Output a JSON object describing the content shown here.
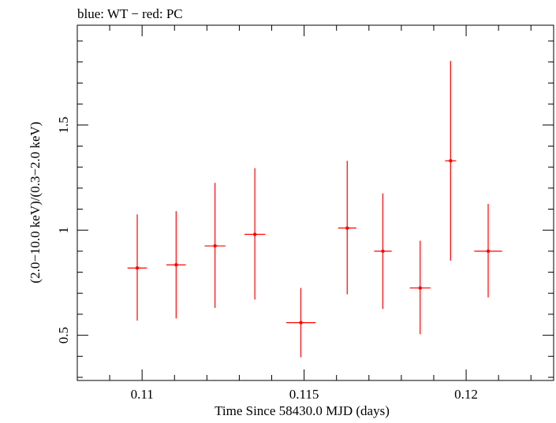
{
  "chart_data": {
    "type": "scatter",
    "title": "blue: WT − red: PC",
    "xlabel": "Time Since 58430.0 MJD (days)",
    "ylabel": "(2.0−10.0 keV)/(0.3−2.0 keV)",
    "xlim": [
      0.108,
      0.1227
    ],
    "ylim": [
      0.285,
      1.975
    ],
    "x_ticks": [
      0.11,
      0.115,
      0.12
    ],
    "x_tick_labels": [
      "0.11",
      "0.115",
      "0.12"
    ],
    "y_ticks": [
      0.5,
      1,
      1.5
    ],
    "y_tick_labels": [
      "0.5",
      "1",
      "1.5"
    ],
    "grid": false,
    "series": [
      {
        "color": "#ff0000",
        "points": [
          {
            "x": 0.10985,
            "xerr": 0.0003,
            "y": 0.82,
            "yerr_low": 0.25,
            "yerr_high": 0.255
          },
          {
            "x": 0.11105,
            "xerr": 0.0003,
            "y": 0.835,
            "yerr_low": 0.255,
            "yerr_high": 0.255
          },
          {
            "x": 0.11225,
            "xerr": 0.00032,
            "y": 0.925,
            "yerr_low": 0.295,
            "yerr_high": 0.3
          },
          {
            "x": 0.11348,
            "xerr": 0.00032,
            "y": 0.98,
            "yerr_low": 0.31,
            "yerr_high": 0.315
          },
          {
            "x": 0.1149,
            "xerr": 0.00045,
            "y": 0.56,
            "yerr_low": 0.165,
            "yerr_high": 0.165
          },
          {
            "x": 0.11633,
            "xerr": 0.00028,
            "y": 1.01,
            "yerr_low": 0.315,
            "yerr_high": 0.32
          },
          {
            "x": 0.11743,
            "xerr": 0.00027,
            "y": 0.9,
            "yerr_low": 0.275,
            "yerr_high": 0.275
          },
          {
            "x": 0.11858,
            "xerr": 0.00032,
            "y": 0.725,
            "yerr_low": 0.22,
            "yerr_high": 0.225
          },
          {
            "x": 0.11952,
            "xerr": 0.00017,
            "y": 1.33,
            "yerr_low": 0.475,
            "yerr_high": 0.475
          },
          {
            "x": 0.12068,
            "xerr": 0.00043,
            "y": 0.9,
            "yerr_low": 0.22,
            "yerr_high": 0.225
          }
        ]
      }
    ]
  }
}
